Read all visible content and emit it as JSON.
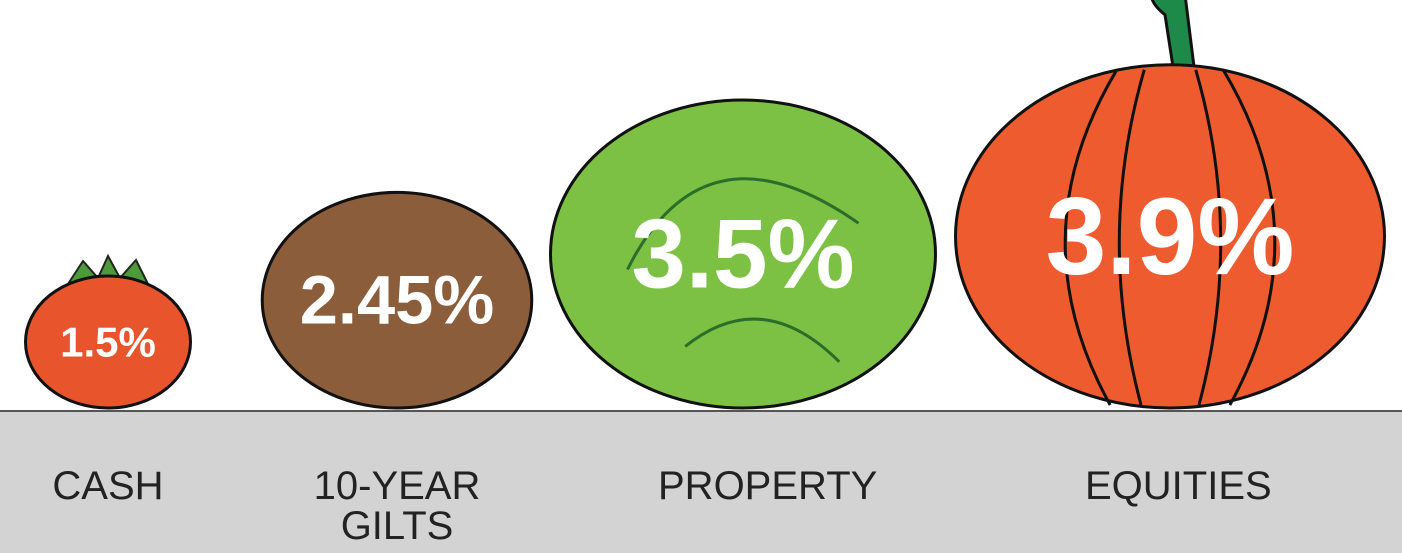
{
  "chart_data": {
    "type": "pictorial",
    "categories": [
      "CASH",
      "10-YEAR GILTS",
      "PROPERTY",
      "EQUITIES"
    ],
    "values": [
      1.5,
      2.45,
      3.5,
      3.9
    ],
    "value_labels": [
      "1.5%",
      "2.45%",
      "3.5%",
      "3.9%"
    ],
    "colors": [
      "#e8552c",
      "#8b5d3b",
      "#7cc143",
      "#ee5b2f"
    ]
  }
}
